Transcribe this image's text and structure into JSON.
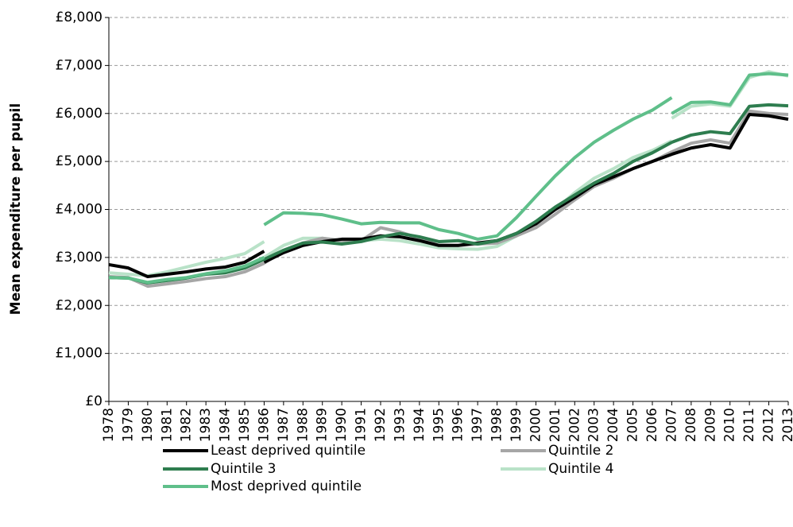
{
  "chart_data": {
    "type": "line",
    "y_label": "Mean expenditure per pupil",
    "x": [
      1978,
      1979,
      1980,
      1981,
      1982,
      1983,
      1984,
      1985,
      1986,
      1986,
      1986,
      1987,
      1988,
      1989,
      1990,
      1991,
      1992,
      1993,
      1994,
      1995,
      1996,
      1997,
      1998,
      1999,
      2000,
      2001,
      2002,
      2003,
      2004,
      2005,
      2006,
      2007,
      2007,
      2007,
      2008,
      2009,
      2010,
      2011,
      2012,
      2013
    ],
    "series": [
      {
        "name": "Least deprived quintile",
        "color": "#000000",
        "values": [
          2850,
          2780,
          2600,
          2650,
          2700,
          2760,
          2800,
          2900,
          3130,
          null,
          2900,
          3100,
          3250,
          3330,
          3380,
          3380,
          3450,
          3430,
          3350,
          3250,
          3250,
          3300,
          3350,
          3500,
          3700,
          4000,
          4250,
          4520,
          4680,
          4850,
          5000,
          5150,
          null,
          5150,
          5280,
          5350,
          5280,
          5980,
          5950,
          5880
        ]
      },
      {
        "name": "Quintile 2",
        "color": "#a6a6a6",
        "values": [
          2600,
          2580,
          2400,
          2450,
          2500,
          2560,
          2600,
          2700,
          2880,
          null,
          2880,
          3150,
          3300,
          3400,
          3350,
          3350,
          3620,
          3530,
          3400,
          3250,
          3250,
          3280,
          3300,
          3450,
          3620,
          3900,
          4200,
          4480,
          4650,
          4850,
          5000,
          5200,
          null,
          5200,
          5380,
          5450,
          5380,
          6050,
          6000,
          5980
        ]
      },
      {
        "name": "Quintile 3",
        "color": "#2e7d4f",
        "values": [
          2580,
          2570,
          2470,
          2520,
          2570,
          2650,
          2680,
          2780,
          2960,
          null,
          2960,
          3150,
          3300,
          3320,
          3280,
          3330,
          3430,
          3500,
          3430,
          3330,
          3350,
          3280,
          3350,
          3500,
          3750,
          4050,
          4300,
          4550,
          4750,
          5000,
          5180,
          5400,
          null,
          5400,
          5550,
          5620,
          5580,
          6150,
          6180,
          6160
        ]
      },
      {
        "name": "Quintile 4",
        "color": "#b9e2c8",
        "values": [
          2680,
          2650,
          2620,
          2700,
          2800,
          2900,
          2980,
          3080,
          3330,
          null,
          3000,
          3250,
          3400,
          3400,
          3350,
          3350,
          3380,
          3350,
          3280,
          3200,
          3180,
          3170,
          3230,
          3450,
          3750,
          4000,
          4350,
          4650,
          4850,
          5080,
          5230,
          5430,
          null,
          5900,
          6150,
          6200,
          6150,
          6750,
          6870,
          6780
        ]
      },
      {
        "name": "Most deprived quintile",
        "color": "#5fbf8a",
        "values": [
          2580,
          2570,
          2480,
          2540,
          2580,
          2660,
          2720,
          2820,
          3000,
          null,
          3680,
          3930,
          3920,
          3890,
          3800,
          3700,
          3730,
          3720,
          3720,
          3580,
          3500,
          3380,
          3450,
          3830,
          4270,
          4700,
          5080,
          5400,
          5650,
          5880,
          6070,
          6330,
          null,
          6000,
          6230,
          6240,
          6180,
          6800,
          6830,
          6800
        ]
      }
    ],
    "xlim": [
      1978,
      2013
    ],
    "xticks": [
      1978,
      1979,
      1980,
      1981,
      1982,
      1983,
      1984,
      1985,
      1986,
      1987,
      1988,
      1989,
      1990,
      1991,
      1992,
      1993,
      1994,
      1995,
      1996,
      1997,
      1998,
      1999,
      2000,
      2001,
      2002,
      2003,
      2004,
      2005,
      2006,
      2007,
      2008,
      2009,
      2010,
      2011,
      2012,
      2013
    ],
    "ylim": [
      0,
      8000
    ],
    "yticks": [
      {
        "value": 0,
        "label": "£0"
      },
      {
        "value": 1000,
        "label": "£1,000"
      },
      {
        "value": 2000,
        "label": "£2,000"
      },
      {
        "value": 3000,
        "label": "£3,000"
      },
      {
        "value": 4000,
        "label": "£4,000"
      },
      {
        "value": 5000,
        "label": "£5,000"
      },
      {
        "value": 6000,
        "label": "£6,000"
      },
      {
        "value": 7000,
        "label": "£7,000"
      },
      {
        "value": 8000,
        "label": "£8,000"
      }
    ],
    "grid": true
  }
}
